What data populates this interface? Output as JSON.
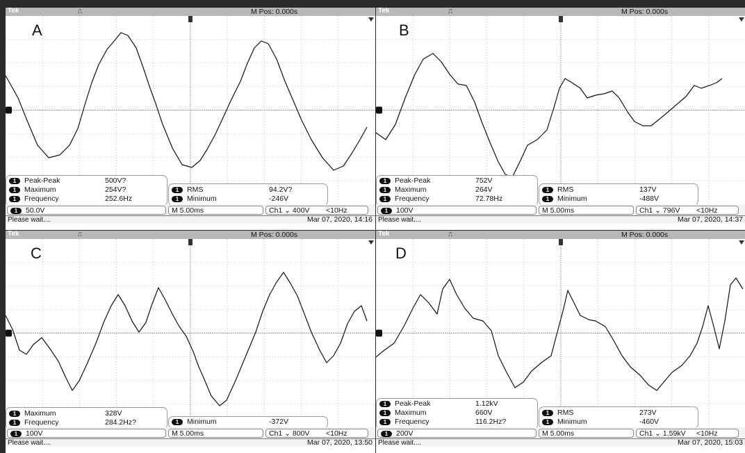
{
  "header": {
    "brand": "Tek",
    "trigger_indicator": "⎍",
    "mpos": "M Pos: 0.000s"
  },
  "colors": {
    "trace": "#111111",
    "grid": "#9a9a9a",
    "header": "#b8b8b8",
    "background": "#ffffff"
  },
  "panels": [
    {
      "letter": "A",
      "meas_left": [
        {
          "label": "Peak-Peak",
          "value": "500V?"
        },
        {
          "label": "Maximum",
          "value": "254V?"
        },
        {
          "label": "Frequency",
          "value": "252.6Hz"
        }
      ],
      "meas_right": [
        {
          "label": "RMS",
          "value": "94.2V?"
        },
        {
          "label": "Minimum",
          "value": "-246V"
        }
      ],
      "volts": "50.0V",
      "timebase": "M 5.00ms",
      "trigger": "Ch1 ⌄ 400V",
      "trig_freq": "<10Hz",
      "status": "Please wait....",
      "date": "Mar 07, 2020, 14:16"
    },
    {
      "letter": "B",
      "meas_left": [
        {
          "label": "Peak-Peak",
          "value": "752V"
        },
        {
          "label": "Maximum",
          "value": "264V"
        },
        {
          "label": "Frequency",
          "value": "72.78Hz"
        }
      ],
      "meas_right": [
        {
          "label": "RMS",
          "value": "137V"
        },
        {
          "label": "Minimum",
          "value": "-488V"
        }
      ],
      "volts": "100V",
      "timebase": "M 5.00ms",
      "trigger": "Ch1 ⌄ 796V",
      "trig_freq": "<10Hz",
      "status": "Please wait....",
      "date": "Mar 07, 2020, 14:37"
    },
    {
      "letter": "C",
      "meas_left": [
        {
          "label": "Maximum",
          "value": "328V"
        },
        {
          "label": "Frequency",
          "value": "284.2Hz?"
        }
      ],
      "meas_right": [
        {
          "label": "Minimum",
          "value": "-372V"
        }
      ],
      "volts": "100V",
      "timebase": "M 5.00ms",
      "trigger": "Ch1 ⌄ 800V",
      "trig_freq": "<10Hz",
      "status": "Please wait....",
      "date": "Mar 07, 2020, 13:50"
    },
    {
      "letter": "D",
      "meas_left": [
        {
          "label": "Peak-Peak",
          "value": "1.12kV"
        },
        {
          "label": "Maximum",
          "value": "660V"
        },
        {
          "label": "Frequency",
          "value": "116.2Hz?"
        }
      ],
      "meas_right": [
        {
          "label": "RMS",
          "value": "273V"
        },
        {
          "label": "Minimum",
          "value": "-460V"
        }
      ],
      "volts": "200V",
      "timebase": "M 5.00ms",
      "trigger": "Ch1 ⌄ 1.59kV",
      "trig_freq": "<10Hz",
      "status": "Please wait....",
      "date": "Mar 07, 2020, 15:03"
    }
  ]
}
